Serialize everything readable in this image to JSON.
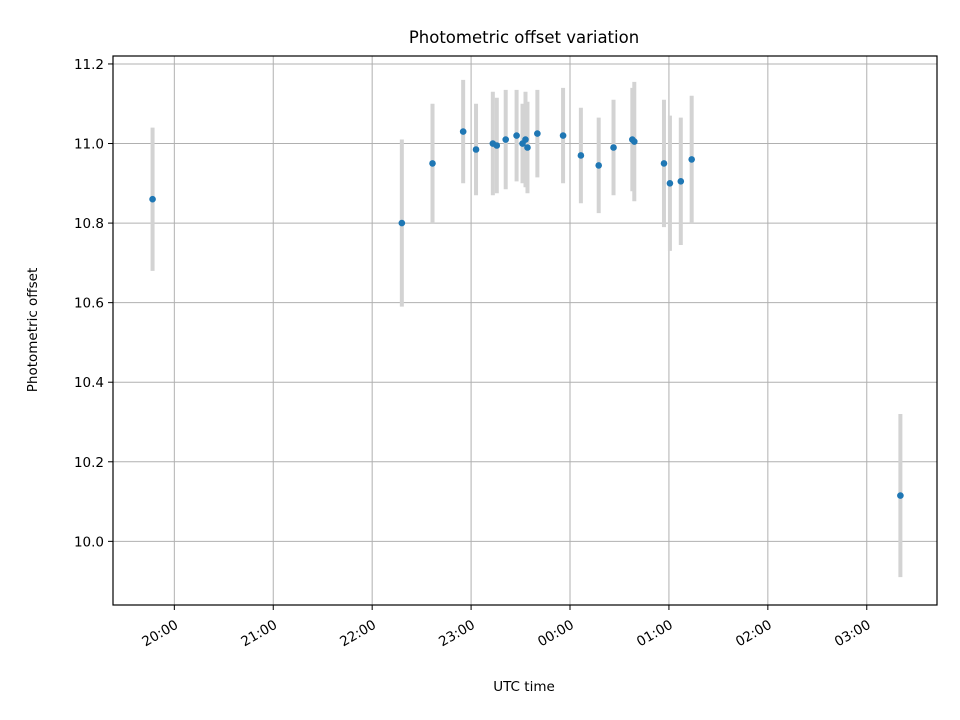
{
  "chart_data": {
    "type": "scatter",
    "title": "Photometric offset variation",
    "xlabel": "UTC time",
    "ylabel": "Photometric offset",
    "x_unit": "UTC hour (continuing past midnight)",
    "xlim": [
      19.38,
      27.71
    ],
    "ylim": [
      9.84,
      11.22
    ],
    "x_ticks": [
      {
        "value": 20,
        "label": "20:00"
      },
      {
        "value": 21,
        "label": "21:00"
      },
      {
        "value": 22,
        "label": "22:00"
      },
      {
        "value": 23,
        "label": "23:00"
      },
      {
        "value": 24,
        "label": "00:00"
      },
      {
        "value": 25,
        "label": "01:00"
      },
      {
        "value": 26,
        "label": "02:00"
      },
      {
        "value": 27,
        "label": "03:00"
      }
    ],
    "y_ticks": [
      {
        "value": 10.0,
        "label": "10.0"
      },
      {
        "value": 10.2,
        "label": "10.2"
      },
      {
        "value": 10.4,
        "label": "10.4"
      },
      {
        "value": 10.6,
        "label": "10.6"
      },
      {
        "value": 10.8,
        "label": "10.8"
      },
      {
        "value": 11.0,
        "label": "11.0"
      },
      {
        "value": 11.2,
        "label": "11.2"
      }
    ],
    "grid": true,
    "point_color": "#1f77b4",
    "errorbar_color": "#d3d3d3",
    "points": [
      {
        "x": 19.78,
        "y": 10.86,
        "err": 0.18
      },
      {
        "x": 22.3,
        "y": 10.8,
        "err": 0.21
      },
      {
        "x": 22.61,
        "y": 10.95,
        "err": 0.15
      },
      {
        "x": 22.92,
        "y": 11.03,
        "err": 0.13
      },
      {
        "x": 23.05,
        "y": 10.985,
        "err": 0.115
      },
      {
        "x": 23.22,
        "y": 11.0,
        "err": 0.13
      },
      {
        "x": 23.26,
        "y": 10.995,
        "err": 0.12
      },
      {
        "x": 23.35,
        "y": 11.01,
        "err": 0.125
      },
      {
        "x": 23.46,
        "y": 11.02,
        "err": 0.115
      },
      {
        "x": 23.52,
        "y": 11.0,
        "err": 0.1
      },
      {
        "x": 23.55,
        "y": 11.01,
        "err": 0.12
      },
      {
        "x": 23.57,
        "y": 10.99,
        "err": 0.115
      },
      {
        "x": 23.67,
        "y": 11.025,
        "err": 0.11
      },
      {
        "x": 23.93,
        "y": 11.02,
        "err": 0.12
      },
      {
        "x": 24.11,
        "y": 10.97,
        "err": 0.12
      },
      {
        "x": 24.29,
        "y": 10.945,
        "err": 0.12
      },
      {
        "x": 24.44,
        "y": 10.99,
        "err": 0.12
      },
      {
        "x": 24.63,
        "y": 11.01,
        "err": 0.13
      },
      {
        "x": 24.65,
        "y": 11.005,
        "err": 0.15
      },
      {
        "x": 24.95,
        "y": 10.95,
        "err": 0.16
      },
      {
        "x": 25.01,
        "y": 10.9,
        "err": 0.17
      },
      {
        "x": 25.12,
        "y": 10.905,
        "err": 0.16
      },
      {
        "x": 25.23,
        "y": 10.96,
        "err": 0.16
      },
      {
        "x": 27.34,
        "y": 10.115,
        "err": 0.205
      }
    ]
  }
}
